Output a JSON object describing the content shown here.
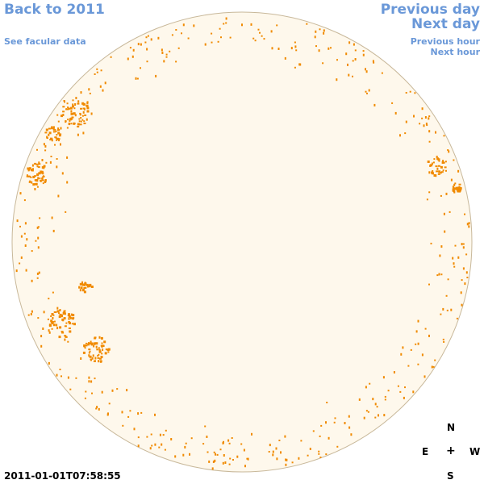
{
  "nav": {
    "back": "Back to 2011",
    "facular": "See facular data",
    "prev_day": "Previous day",
    "next_day": "Next day",
    "prev_hour": "Previous hour",
    "next_hour": "Next hour"
  },
  "timestamp": "2011-01-01T07:58:55",
  "compass": {
    "north": "N",
    "east": "E",
    "center": "+",
    "west": "W",
    "south": "S"
  },
  "colors": {
    "disk_fill": "#fef8ec",
    "disk_edge": "#c8b89a",
    "feature": "#f08a00",
    "link": "#6a98d8"
  }
}
